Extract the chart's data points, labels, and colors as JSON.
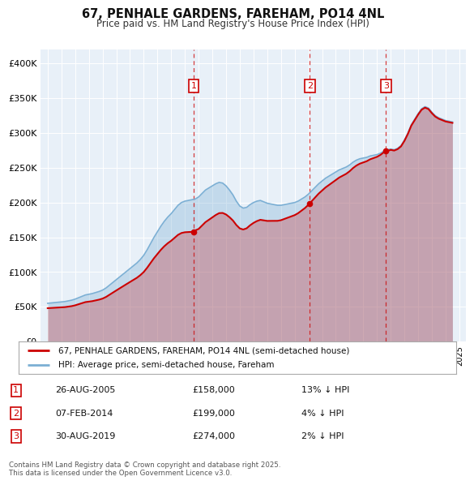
{
  "title": "67, PENHALE GARDENS, FAREHAM, PO14 4NL",
  "subtitle": "Price paid vs. HM Land Registry's House Price Index (HPI)",
  "legend_line1": "67, PENHALE GARDENS, FAREHAM, PO14 4NL (semi-detached house)",
  "legend_line2": "HPI: Average price, semi-detached house, Fareham",
  "sale_color": "#cc0000",
  "hpi_color": "#7bafd4",
  "plot_bg": "#e8f0f8",
  "annotations": [
    {
      "num": 1,
      "date": "26-AUG-2005",
      "price": "£158,000",
      "note": "13% ↓ HPI",
      "x_year": 2005.65
    },
    {
      "num": 2,
      "date": "07-FEB-2014",
      "price": "£199,000",
      "note": "4% ↓ HPI",
      "x_year": 2014.1
    },
    {
      "num": 3,
      "date": "30-AUG-2019",
      "price": "£274,000",
      "note": "2% ↓ HPI",
      "x_year": 2019.65
    }
  ],
  "footer": "Contains HM Land Registry data © Crown copyright and database right 2025.\nThis data is licensed under the Open Government Licence v3.0.",
  "ylim": [
    0,
    420000
  ],
  "yticks": [
    0,
    50000,
    100000,
    150000,
    200000,
    250000,
    300000,
    350000,
    400000
  ],
  "ytick_labels": [
    "£0",
    "£50K",
    "£100K",
    "£150K",
    "£200K",
    "£250K",
    "£300K",
    "£350K",
    "£400K"
  ],
  "hpi_years": [
    1995.0,
    1995.25,
    1995.5,
    1995.75,
    1996.0,
    1996.25,
    1996.5,
    1996.75,
    1997.0,
    1997.25,
    1997.5,
    1997.75,
    1998.0,
    1998.25,
    1998.5,
    1998.75,
    1999.0,
    1999.25,
    1999.5,
    1999.75,
    2000.0,
    2000.25,
    2000.5,
    2000.75,
    2001.0,
    2001.25,
    2001.5,
    2001.75,
    2002.0,
    2002.25,
    2002.5,
    2002.75,
    2003.0,
    2003.25,
    2003.5,
    2003.75,
    2004.0,
    2004.25,
    2004.5,
    2004.75,
    2005.0,
    2005.25,
    2005.5,
    2005.75,
    2006.0,
    2006.25,
    2006.5,
    2006.75,
    2007.0,
    2007.25,
    2007.5,
    2007.75,
    2008.0,
    2008.25,
    2008.5,
    2008.75,
    2009.0,
    2009.25,
    2009.5,
    2009.75,
    2010.0,
    2010.25,
    2010.5,
    2010.75,
    2011.0,
    2011.25,
    2011.5,
    2011.75,
    2012.0,
    2012.25,
    2012.5,
    2012.75,
    2013.0,
    2013.25,
    2013.5,
    2013.75,
    2014.0,
    2014.25,
    2014.5,
    2014.75,
    2015.0,
    2015.25,
    2015.5,
    2015.75,
    2016.0,
    2016.25,
    2016.5,
    2016.75,
    2017.0,
    2017.25,
    2017.5,
    2017.75,
    2018.0,
    2018.25,
    2018.5,
    2018.75,
    2019.0,
    2019.25,
    2019.5,
    2019.75,
    2020.0,
    2020.25,
    2020.5,
    2020.75,
    2021.0,
    2021.25,
    2021.5,
    2021.75,
    2022.0,
    2022.25,
    2022.5,
    2022.75,
    2023.0,
    2023.25,
    2023.5,
    2023.75,
    2024.0,
    2024.25,
    2024.5
  ],
  "hpi_vals": [
    55000,
    55500,
    56000,
    56500,
    57000,
    57500,
    58500,
    59500,
    61000,
    63000,
    65000,
    67000,
    68000,
    69000,
    70500,
    72000,
    74000,
    77000,
    81000,
    85000,
    89000,
    93000,
    97000,
    101000,
    105000,
    109000,
    113000,
    118000,
    124000,
    132000,
    141000,
    150000,
    158000,
    166000,
    173000,
    179000,
    184000,
    190000,
    196000,
    200000,
    202000,
    203000,
    204000,
    205000,
    208000,
    213000,
    218000,
    221000,
    224000,
    227000,
    229000,
    228000,
    224000,
    218000,
    211000,
    202000,
    195000,
    192000,
    193000,
    197000,
    200000,
    202000,
    203000,
    201000,
    199000,
    198000,
    197000,
    196000,
    196000,
    197000,
    198000,
    199000,
    200000,
    202000,
    205000,
    208000,
    212000,
    217000,
    222000,
    227000,
    231000,
    235000,
    238000,
    241000,
    244000,
    247000,
    249000,
    251000,
    254000,
    258000,
    261000,
    263000,
    264000,
    265000,
    267000,
    268000,
    269000,
    271000,
    274000,
    276000,
    277000,
    276000,
    278000,
    282000,
    290000,
    300000,
    312000,
    320000,
    328000,
    335000,
    338000,
    336000,
    330000,
    325000,
    322000,
    320000,
    318000,
    317000,
    316000
  ],
  "sale_points": [
    {
      "year": 1995.0,
      "value": 48000
    },
    {
      "year": 2005.65,
      "value": 158000
    },
    {
      "year": 2014.1,
      "value": 199000
    },
    {
      "year": 2019.65,
      "value": 274000
    }
  ],
  "xlim_left": 1994.5,
  "xlim_right": 2025.5
}
